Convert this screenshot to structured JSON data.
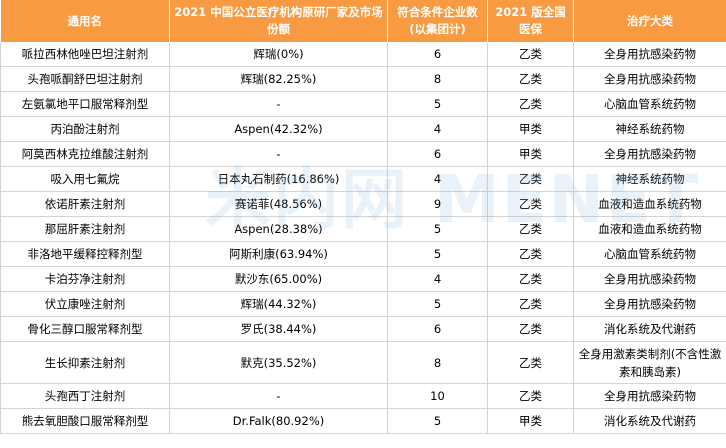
{
  "table": {
    "headers": [
      "通用名",
      "2021 中国公立医疗机构原研厂家及市场份额",
      "符合条件企业数(以集团计)",
      "2021 版全国医保",
      "治疗大类"
    ],
    "rows": [
      [
        "哌拉西林他唑巴坦注射剂",
        "辉瑞(0%)",
        "6",
        "乙类",
        "全身用抗感染药物"
      ],
      [
        "头孢哌酮舒巴坦注射剂",
        "辉瑞(82.25%)",
        "8",
        "乙类",
        "全身用抗感染药物"
      ],
      [
        "左氨氯地平口服常释剂型",
        "-",
        "5",
        "乙类",
        "心脑血管系统药物"
      ],
      [
        "丙泊酚注射剂",
        "Aspen(42.32%)",
        "4",
        "甲类",
        "神经系统药物"
      ],
      [
        "阿莫西林克拉维酸注射剂",
        "-",
        "6",
        "甲类",
        "全身用抗感染药物"
      ],
      [
        "吸入用七氟烷",
        "日本丸石制药(16.86%)",
        "4",
        "乙类",
        "神经系统药物"
      ],
      [
        "依诺肝素注射剂",
        "赛诺菲(48.56%)",
        "9",
        "乙类",
        "血液和造血系统药物"
      ],
      [
        "那屈肝素注射剂",
        "Aspen(28.38%)",
        "5",
        "乙类",
        "血液和造血系统药物"
      ],
      [
        "非洛地平缓释控释剂型",
        "阿斯利康(63.94%)",
        "5",
        "乙类",
        "心脑血管系统药物"
      ],
      [
        "卡泊芬净注射剂",
        "默沙东(65.00%)",
        "4",
        "乙类",
        "全身用抗感染药物"
      ],
      [
        "伏立康唑注射剂",
        "辉瑞(44.32%)",
        "5",
        "乙类",
        "全身用抗感染药物"
      ],
      [
        "骨化三醇口服常释剂型",
        "罗氏(38.44%)",
        "6",
        "乙类",
        "消化系统及代谢药"
      ],
      [
        "生长抑素注射剂",
        "默克(35.52%)",
        "8",
        "乙类",
        "全身用激素类制剂(不含性激素和胰岛素)"
      ],
      [
        "头孢西丁注射剂",
        "-",
        "10",
        "乙类",
        "全身用抗感染药物"
      ],
      [
        "熊去氧胆酸口服常释剂型",
        "Dr.Falk(80.92%)",
        "5",
        "甲类",
        "消化系统及代谢药"
      ]
    ]
  },
  "watermark": "米内网 MENET",
  "colors": {
    "header_bg": "#f79a41",
    "header_text": "#ffffff",
    "border": "#d4d4d4"
  }
}
